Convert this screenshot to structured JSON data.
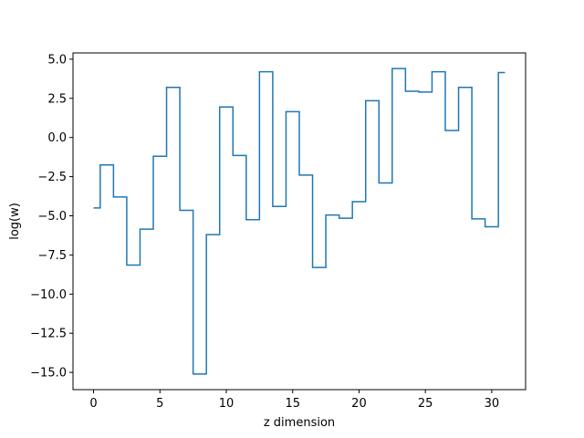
{
  "chart_data": {
    "type": "line",
    "drawstyle": "steps-mid",
    "xlabel": "z dimension",
    "ylabel": "log(w)",
    "xlim": [
      -1.55,
      32.55
    ],
    "ylim": [
      -16.1,
      5.4
    ],
    "xticks": [
      0,
      5,
      10,
      15,
      20,
      25,
      30
    ],
    "xtick_labels": [
      "0",
      "5",
      "10",
      "15",
      "20",
      "25",
      "30"
    ],
    "yticks": [
      5.0,
      2.5,
      0.0,
      -2.5,
      -5.0,
      -7.5,
      -10.0,
      -12.5,
      -15.0
    ],
    "ytick_labels": [
      "5.0",
      "2.5",
      "0.0",
      "−2.5",
      "−5.0",
      "−7.5",
      "−10.0",
      "−12.5",
      "−15.0"
    ],
    "grid": false,
    "series": [
      {
        "color": "#1f77b4",
        "x": [
          0,
          1,
          2,
          3,
          4,
          5,
          6,
          7,
          8,
          9,
          10,
          11,
          12,
          13,
          14,
          15,
          16,
          17,
          18,
          19,
          20,
          21,
          22,
          23,
          24,
          25,
          26,
          27,
          28,
          29,
          30,
          31
        ],
        "y": [
          -4.5,
          -1.75,
          -3.8,
          -8.15,
          -5.85,
          -1.2,
          3.2,
          -4.65,
          -15.1,
          -6.2,
          1.95,
          -1.15,
          -5.25,
          4.2,
          -4.4,
          1.65,
          -2.4,
          -8.3,
          -4.95,
          -5.15,
          -4.1,
          2.35,
          -2.9,
          4.4,
          2.95,
          2.9,
          4.2,
          0.45,
          3.2,
          -5.2,
          -5.7,
          4.15
        ]
      }
    ]
  }
}
